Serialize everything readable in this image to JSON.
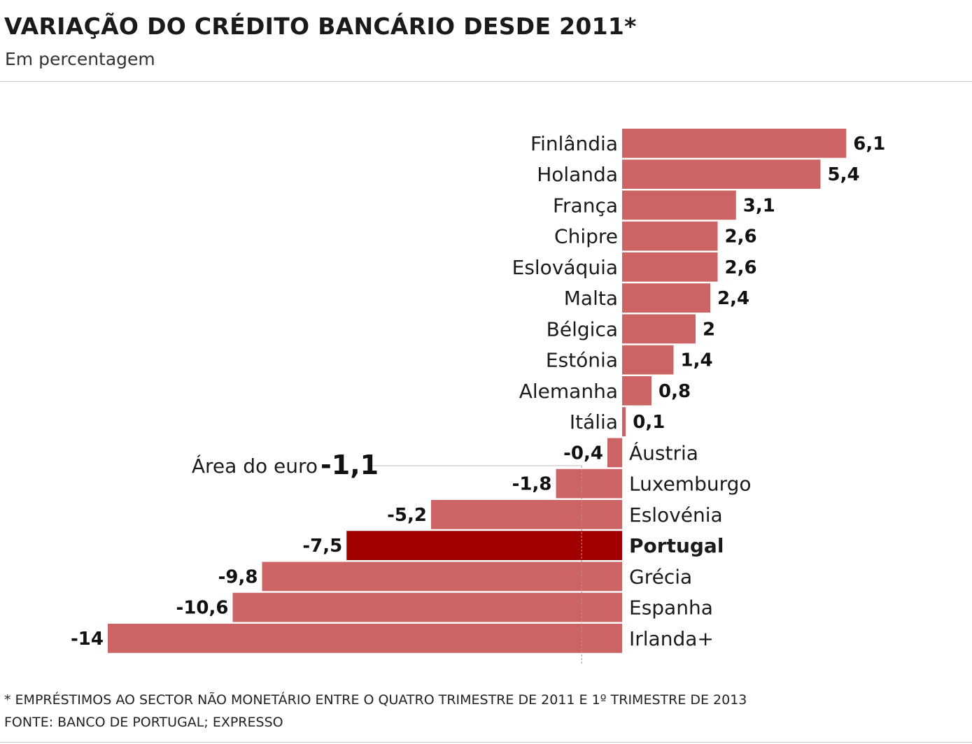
{
  "header": {
    "title": "VARIAÇÃO DO CRÉDITO BANCÁRIO DESDE 2011*",
    "subtitle": "Em percentagem"
  },
  "footer": {
    "footnote": "* EMPRÉSTIMOS AO SECTOR NÃO MONETÁRIO ENTRE O QUATRO TRIMESTRE DE 2011 E 1º TRIMESTRE DE 2013",
    "source": "FONTE: BANCO DE PORTUGAL; EXPRESSO"
  },
  "colors": {
    "bar": "#cc6466",
    "highlight": "#a00000",
    "reference_line": "#999999"
  },
  "chart_data": {
    "type": "bar",
    "orientation": "horizontal",
    "title": "VARIAÇÃO DO CRÉDITO BANCÁRIO DESDE 2011*",
    "subtitle": "Em percentagem",
    "categories": [
      "Finlândia",
      "Holanda",
      "França",
      "Chipre",
      "Eslováquia",
      "Malta",
      "Bélgica",
      "Estónia",
      "Alemanha",
      "Itália",
      "Áustria",
      "Luxemburgo",
      "Eslovénia",
      "Portugal",
      "Grécia",
      "Espanha",
      "Irlanda+"
    ],
    "values": [
      6.1,
      5.4,
      3.1,
      2.6,
      2.6,
      2.4,
      2,
      1.4,
      0.8,
      0.1,
      -0.4,
      -1.8,
      -5.2,
      -7.5,
      -9.8,
      -10.6,
      -14
    ],
    "value_labels": [
      "6,1",
      "5,4",
      "3,1",
      "2,6",
      "2,6",
      "2,4",
      "2",
      "1,4",
      "0,8",
      "0,1",
      "-0,4",
      "-1,8",
      "-5,2",
      "-7,5",
      "-9,8",
      "-10,6",
      "-14"
    ],
    "highlight": "Portugal",
    "reference": {
      "label": "Área do euro",
      "value": -1.1,
      "value_label": "-1,1"
    },
    "xlim": [
      -14,
      6.1
    ],
    "grid": false,
    "legend": "none"
  }
}
